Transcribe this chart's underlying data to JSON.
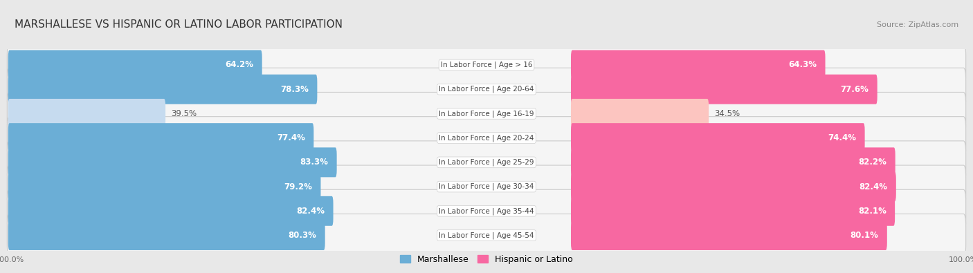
{
  "title": "MARSHALLESE VS HISPANIC OR LATINO LABOR PARTICIPATION",
  "source": "Source: ZipAtlas.com",
  "categories": [
    "In Labor Force | Age > 16",
    "In Labor Force | Age 20-64",
    "In Labor Force | Age 16-19",
    "In Labor Force | Age 20-24",
    "In Labor Force | Age 25-29",
    "In Labor Force | Age 30-34",
    "In Labor Force | Age 35-44",
    "In Labor Force | Age 45-54"
  ],
  "marshallese_values": [
    64.2,
    78.3,
    39.5,
    77.4,
    83.3,
    79.2,
    82.4,
    80.3
  ],
  "hispanic_values": [
    64.3,
    77.6,
    34.5,
    74.4,
    82.2,
    82.4,
    82.1,
    80.1
  ],
  "marshallese_color": "#6baed6",
  "marshallese_light_color": "#c6dbef",
  "hispanic_color": "#f768a1",
  "hispanic_light_color": "#fcc5c0",
  "bg_color": "#e8e8e8",
  "title_bg_color": "#ffffff",
  "row_bg_color": "#f5f5f5",
  "row_border_color": "#cccccc",
  "bar_height": 0.62,
  "label_fontsize": 8.5,
  "title_fontsize": 11,
  "source_fontsize": 8,
  "cat_fontsize": 7.5,
  "max_value": 100.0,
  "legend_labels": [
    "Marshallese",
    "Hispanic or Latino"
  ],
  "x_tick_label": "100.0%"
}
